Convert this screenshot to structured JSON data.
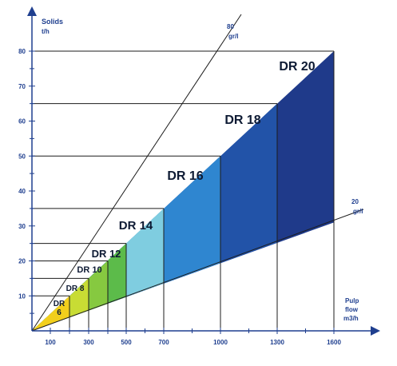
{
  "chart_data": {
    "type": "area",
    "title": "",
    "ylabel_line1": "Solids",
    "ylabel_line2": "t/h",
    "xlabel_line1": "Pulp",
    "xlabel_line2": "flow",
    "xlabel_line3": "m3/h",
    "yticks": [
      10,
      20,
      30,
      40,
      50,
      60,
      70,
      80
    ],
    "xticks": [
      100,
      200,
      300,
      400,
      500,
      700,
      1000,
      1300,
      1600
    ],
    "xtick_labels": [
      "100",
      "",
      "300",
      "",
      "500",
      "700",
      "1000",
      "1300",
      "1600"
    ],
    "ylim": [
      0,
      80
    ],
    "concentration_lines": [
      {
        "top": "80",
        "bottom": "gr/l",
        "end_x": 1600,
        "end_y": 80
      },
      {
        "top": "20",
        "bottom": "gr/l",
        "end_x": 1600,
        "end_y": 31
      }
    ],
    "series": [
      {
        "name": "DR 20",
        "max_flow": 1600,
        "max_solids": 80,
        "color": "#1f3a8a"
      },
      {
        "name": "DR 18",
        "max_flow": 1300,
        "max_solids": 65,
        "color": "#2253a8"
      },
      {
        "name": "DR 16",
        "max_flow": 1000,
        "max_solids": 50,
        "color": "#2f86d0"
      },
      {
        "name": "DR 14",
        "max_flow": 700,
        "max_solids": 35,
        "color": "#7fcde0"
      },
      {
        "name": "DR 12",
        "max_flow": 500,
        "max_solids": 25,
        "color": "#5cbb4a"
      },
      {
        "name": "DR 10",
        "max_flow": 400,
        "max_solids": 20,
        "color": "#86c940"
      },
      {
        "name": "DR 8",
        "max_flow": 300,
        "max_solids": 15,
        "color": "#c8dc34"
      },
      {
        "name": "DR 6",
        "max_flow": 200,
        "max_solids": 10,
        "color": "#f2cf1c"
      }
    ],
    "label_lines": [
      {
        "series": "DR 20",
        "lines": [
          "DR 20"
        ]
      },
      {
        "series": "DR 18",
        "lines": [
          "DR 18"
        ]
      },
      {
        "series": "DR 16",
        "lines": [
          "DR 16"
        ]
      },
      {
        "series": "DR 14",
        "lines": [
          "DR 14"
        ]
      },
      {
        "series": "DR 12",
        "lines": [
          "DR 12"
        ]
      },
      {
        "series": "DR 10",
        "lines": [
          "DR 10"
        ]
      },
      {
        "series": "DR 8",
        "lines": [
          "DR 8"
        ]
      },
      {
        "series": "DR 6",
        "lines": [
          "DR",
          "6"
        ]
      }
    ]
  }
}
